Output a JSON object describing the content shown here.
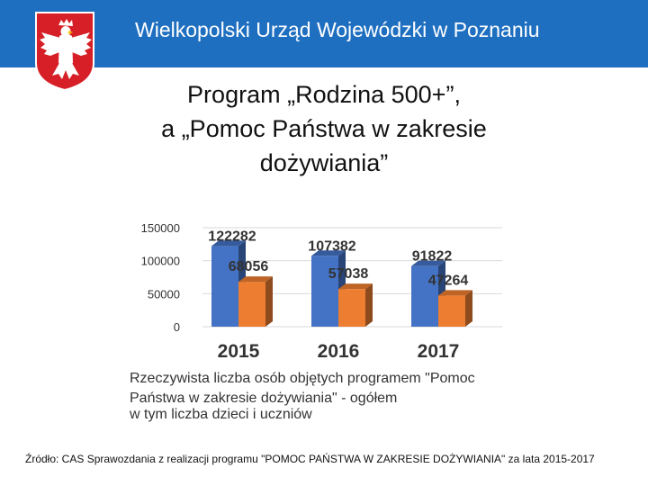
{
  "header": {
    "title": "Wielkopolski Urząd Wojewódzki w Poznaniu",
    "emblem_icon": "polish-eagle-emblem-icon"
  },
  "slide": {
    "title_lines": [
      "Program „Rodzina 500+”,",
      "a „Pomoc Państwa w zakresie",
      "dożywiania”"
    ]
  },
  "chart_data": {
    "type": "bar",
    "categories": [
      "2015",
      "2016",
      "2017"
    ],
    "series": [
      {
        "name": "Rzeczywista liczba osób objętych programem \"Pomoc Państwa w zakresie dożywiania\" - ogółem",
        "values": [
          122282,
          107382,
          91822
        ],
        "color": "#4472c4"
      },
      {
        "name": "w tym liczba dzieci i uczniów",
        "values": [
          68056,
          57038,
          47264
        ],
        "color": "#ed7d31"
      }
    ],
    "yticks": [
      0,
      50000,
      100000,
      150000
    ],
    "ylim": [
      0,
      150000
    ],
    "grid": true,
    "legend": "bottom"
  },
  "source": {
    "text": "Źródło: CAS Sprawozdania z realizacji programu \"POMOC PAŃSTWA W ZAKRESIE DOŻYWIANIA\" za lata 2015-2017"
  },
  "colors": {
    "header_bg": "#1f6fc1",
    "emblem_red": "#d61f26"
  }
}
